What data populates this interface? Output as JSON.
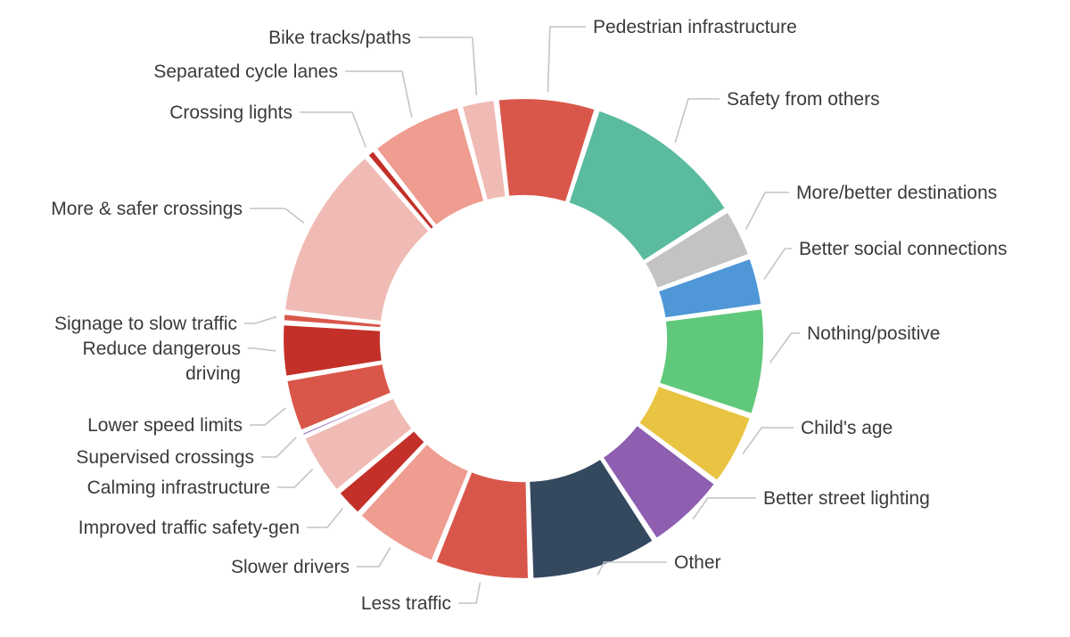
{
  "chart_data": {
    "type": "pie",
    "donut": true,
    "legend": "none",
    "slices": [
      {
        "label": "Pedestrian infrastructure",
        "value": 6.9,
        "color": "#d9574a",
        "lines": [
          "Pedestrian infrastructure"
        ]
      },
      {
        "label": "Safety from others",
        "value": 11.3,
        "color": "#5bbb9f",
        "lines": [
          "Safety from others"
        ]
      },
      {
        "label": "More/better destinations",
        "value": 3.5,
        "color": "#c3c3c3",
        "lines": [
          "More/better destinations"
        ]
      },
      {
        "label": "Better social connections",
        "value": 3.5,
        "color": "#4f97d7",
        "lines": [
          "Better social connections"
        ]
      },
      {
        "label": "Nothing/positive",
        "value": 7.5,
        "color": "#60c87a",
        "lines": [
          "Nothing/positive"
        ]
      },
      {
        "label": "Child's age",
        "value": 5.1,
        "color": "#e9c442",
        "lines": [
          "Child's age"
        ]
      },
      {
        "label": "Better street lighting",
        "value": 5.7,
        "color": "#8e5eb0",
        "lines": [
          "Better street lighting"
        ]
      },
      {
        "label": "Other",
        "value": 8.9,
        "color": "#34485e",
        "lines": [
          "Other"
        ]
      },
      {
        "label": "Less traffic",
        "value": 6.7,
        "color": "#d9574a",
        "lines": [
          "Less traffic"
        ]
      },
      {
        "label": "Slower drivers",
        "value": 6.0,
        "color": "#ef9c91",
        "lines": [
          "Slower drivers"
        ]
      },
      {
        "label": "Improved traffic safety-gen",
        "value": 2.1,
        "color": "#c33029",
        "lines": [
          "Improved traffic safety-gen"
        ]
      },
      {
        "label": "Calming infrastructure",
        "value": 4.4,
        "color": "#f0bbb5",
        "lines": [
          "Calming infrastructure"
        ]
      },
      {
        "label": "Supervised crossings",
        "value": 0.3,
        "color": "#9b73c7",
        "lines": [
          "Supervised crossings"
        ]
      },
      {
        "label": "Lower speed limits",
        "value": 3.8,
        "color": "#d9574a",
        "lines": [
          "Lower speed limits"
        ]
      },
      {
        "label": "Reduce dangerous driving",
        "value": 3.8,
        "color": "#c33029",
        "lines": [
          "Reduce dangerous",
          "driving"
        ]
      },
      {
        "label": "Signage to slow traffic",
        "value": 0.7,
        "color": "#d9574a",
        "lines": [
          "Signage to slow traffic"
        ]
      },
      {
        "label": "More & safer crossings",
        "value": 12.2,
        "color": "#f0bbb5",
        "lines": [
          "More & safer crossings"
        ]
      },
      {
        "label": "Crossing lights",
        "value": 0.7,
        "color": "#c33029",
        "lines": [
          "Crossing lights"
        ]
      },
      {
        "label": "Separated cycle lanes",
        "value": 6.5,
        "color": "#ef9c91",
        "lines": [
          "Separated cycle lanes"
        ]
      },
      {
        "label": "Bike tracks/paths",
        "value": 2.5,
        "color": "#f0bbb5",
        "lines": [
          "Bike tracks/paths"
        ]
      }
    ]
  }
}
